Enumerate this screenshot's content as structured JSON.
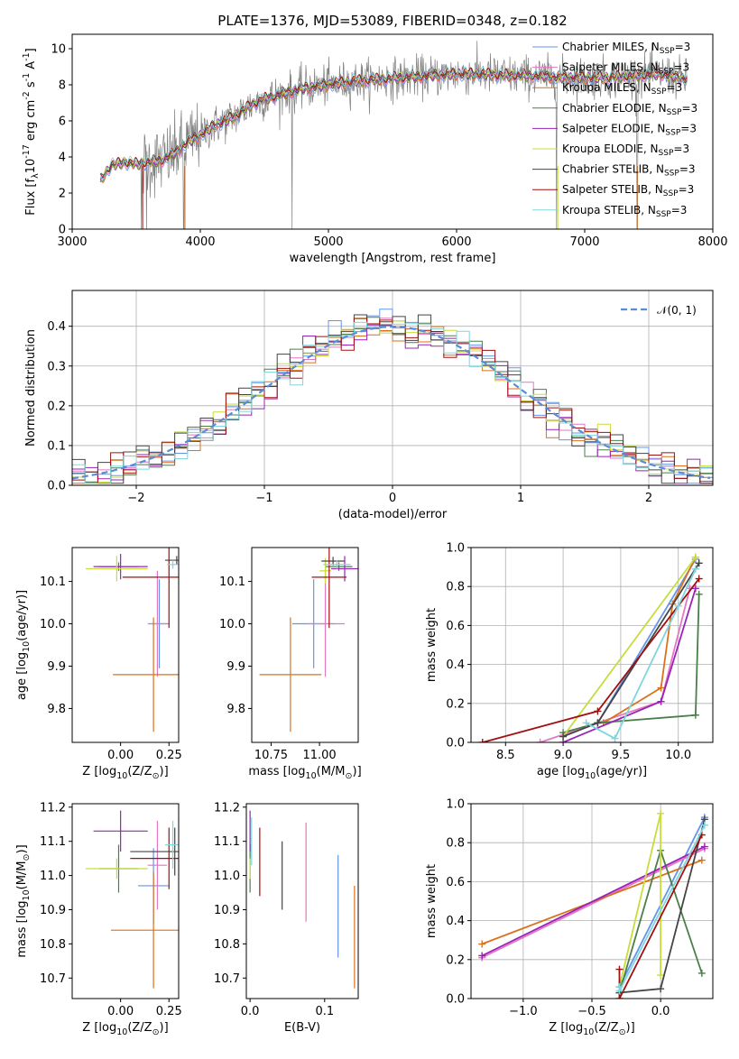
{
  "title": "PLATE=1376, MJD=53089, FIBERID=0348, z=0.182",
  "models": [
    {
      "name": "Chabrier MILES, N$_{SSP}$=3",
      "label_base": "Chabrier MILES, N",
      "label_sub": "SSP",
      "label_tail": "=3",
      "color": "#6495ed"
    },
    {
      "name": "Salpeter MILES, N$_{SSP}$=3",
      "label_base": "Salpeter MILES, N",
      "label_sub": "SSP",
      "label_tail": "=3",
      "color": "#e377c2"
    },
    {
      "name": "Kroupa MILES, N$_{SSP}$=3",
      "label_base": "Kroupa MILES, N",
      "label_sub": "SSP",
      "label_tail": "=3",
      "color": "#d9711c"
    },
    {
      "name": "Chabrier ELODIE, N$_{SSP}$=3",
      "label_base": "Chabrier ELODIE, N",
      "label_sub": "SSP",
      "label_tail": "=3",
      "color": "#4a7f4a"
    },
    {
      "name": "Salpeter ELODIE, N$_{SSP}$=3",
      "label_base": "Salpeter ELODIE, N",
      "label_sub": "SSP",
      "label_tail": "=3",
      "color": "#9b22b8"
    },
    {
      "name": "Kroupa ELODIE, N$_{SSP}$=3",
      "label_base": "Kroupa ELODIE, N",
      "label_sub": "SSP",
      "label_tail": "=3",
      "color": "#c8dc3c"
    },
    {
      "name": "Chabrier STELIB, N$_{SSP}$=3",
      "label_base": "Chabrier STELIB, N",
      "label_sub": "SSP",
      "label_tail": "=3",
      "color": "#444444"
    },
    {
      "name": "Salpeter STELIB, N$_{SSP}$=3",
      "label_base": "Salpeter STELIB, N",
      "label_sub": "SSP",
      "label_tail": "=3",
      "color": "#a01010"
    },
    {
      "name": "Kroupa STELIB, N$_{SSP}$=3",
      "label_base": "Kroupa STELIB, N",
      "label_sub": "SSP",
      "label_tail": "=3",
      "color": "#7fd6dc"
    }
  ],
  "chart_data": [
    {
      "id": "spectrum",
      "type": "line",
      "xlabel": "wavelength [Angstrom, rest frame]",
      "ylabel": "Flux [f$_\\lambda$10$^{-17}$ erg cm$^{-2}$ s$^{-1}$ A$^{-1}$]",
      "xlim": [
        3000,
        8000
      ],
      "ylim": [
        0,
        10.8
      ],
      "xticks": [
        3000,
        4000,
        5000,
        6000,
        7000,
        8000
      ],
      "yticks": [
        0,
        2,
        4,
        6,
        8,
        10
      ],
      "data_color": "#808080",
      "data_trend": {
        "x": [
          3220,
          3300,
          3400,
          3500,
          3600,
          3700,
          3800,
          3900,
          4000,
          4100,
          4200,
          4300,
          4400,
          4500,
          4600,
          4700,
          4800,
          4900,
          5000,
          5200,
          5400,
          5600,
          5800,
          6000,
          6200,
          6400,
          6600,
          6800,
          7000,
          7200,
          7400,
          7600,
          7800
        ],
        "y": [
          2.7,
          3.5,
          3.7,
          3.6,
          3.7,
          3.8,
          4.2,
          4.8,
          5.2,
          5.7,
          6.0,
          6.4,
          6.9,
          7.2,
          7.4,
          7.6,
          7.8,
          7.9,
          8.0,
          8.2,
          8.3,
          8.4,
          8.5,
          8.6,
          8.6,
          8.5,
          8.5,
          8.4,
          8.4,
          8.4,
          8.5,
          8.6,
          8.3
        ]
      },
      "data_noise_start": 3550,
      "deep_dips": [
        3540,
        3580,
        3870,
        4715,
        6780,
        7410
      ]
    },
    {
      "id": "residuals",
      "type": "histogram",
      "xlabel": "(data-model)/error",
      "ylabel": "Normed distribution",
      "xlim": [
        -2.5,
        2.5
      ],
      "ylim": [
        0,
        0.49
      ],
      "xticks": [
        -2,
        -1,
        0,
        1,
        2
      ],
      "yticks": [
        0,
        0.1,
        0.2,
        0.3,
        0.4
      ],
      "bin_width": 0.1,
      "reference_curve": {
        "name": "$\\mathcal{N}(0,1)$",
        "label": "𝒩(0, 1)",
        "mean": 0,
        "sigma": 1,
        "color": "#5b8bd6"
      }
    },
    {
      "id": "age-vs-Z",
      "type": "scatter",
      "xlabel": "Z [log$_{10}$(Z/Z$_\\odot$)]",
      "ylabel": "age  [log$_{10}$(age/yr)]",
      "xlim": [
        -0.25,
        0.3
      ],
      "ylim": [
        9.72,
        10.18
      ],
      "xticks": [
        0.0,
        0.25
      ],
      "yticks": [
        9.8,
        9.9,
        10.0,
        10.1
      ],
      "points": [
        {
          "x": 0.2,
          "xerr": 0.05,
          "y": 10.0,
          "yerr": 0.105
        },
        {
          "x": 0.19,
          "xerr": 0.05,
          "y": 10.0,
          "yerr": 0.125
        },
        {
          "x": 0.17,
          "xerr": 0.21,
          "y": 9.88,
          "yerr": 0.135
        },
        {
          "x": -0.01,
          "xerr": 0.1,
          "y": 10.135,
          "yerr": 0.01
        },
        {
          "x": 0.0,
          "xerr": 0.14,
          "y": 10.135,
          "yerr": 0.03
        },
        {
          "x": -0.02,
          "xerr": 0.16,
          "y": 10.13,
          "yerr": 0.03
        },
        {
          "x": 0.29,
          "xerr": 0.06,
          "y": 10.15,
          "yerr": 0.01
        },
        {
          "x": 0.25,
          "xerr": 0.24,
          "y": 10.11,
          "yerr": 0.12
        },
        {
          "x": 0.27,
          "xerr": 0.03,
          "y": 10.14,
          "yerr": 0.01
        }
      ]
    },
    {
      "id": "age-vs-mass",
      "type": "scatter",
      "xlabel": "mass [log$_{10}$(M/M$_\\odot$)]",
      "ylabel": "",
      "xlim": [
        10.65,
        11.2
      ],
      "ylim": [
        9.72,
        10.18
      ],
      "xticks": [
        10.75,
        11.0
      ],
      "yticks": [
        9.8,
        9.9,
        10.0,
        10.1
      ],
      "xtick_labels": [
        "10.75",
        "11.00"
      ],
      "points": [
        {
          "x": 10.97,
          "xerr": 0.11,
          "y": 10.0,
          "yerr": 0.105
        },
        {
          "x": 11.03,
          "xerr": 0.1,
          "y": 10.0,
          "yerr": 0.125
        },
        {
          "x": 10.85,
          "xerr": 0.16,
          "y": 9.88,
          "yerr": 0.135
        },
        {
          "x": 11.1,
          "xerr": 0.07,
          "y": 10.135,
          "yerr": 0.01
        },
        {
          "x": 11.13,
          "xerr": 0.07,
          "y": 10.13,
          "yerr": 0.03
        },
        {
          "x": 11.03,
          "xerr": 0.03,
          "y": 10.125,
          "yerr": 0.03
        },
        {
          "x": 11.07,
          "xerr": 0.06,
          "y": 10.148,
          "yerr": 0.01
        },
        {
          "x": 11.05,
          "xerr": 0.09,
          "y": 10.11,
          "yerr": 0.12
        },
        {
          "x": 11.09,
          "xerr": 0.07,
          "y": 10.14,
          "yerr": 0.01
        }
      ]
    },
    {
      "id": "weight-vs-age",
      "type": "line",
      "xlabel": "age  [log$_{10}$(age/yr)]",
      "ylabel": "mass weight",
      "xlim": [
        8.2,
        10.3
      ],
      "ylim": [
        0,
        1.0
      ],
      "xticks": [
        8.5,
        9.0,
        9.5,
        10.0
      ],
      "yticks": [
        0.0,
        0.2,
        0.4,
        0.6,
        0.8,
        1.0
      ],
      "series": [
        {
          "x": [
            9.3,
            10.15
          ],
          "y": [
            0.1,
            0.94
          ]
        },
        {
          "x": [
            8.8,
            9.85,
            10.1
          ],
          "y": [
            0.0,
            0.21,
            0.79
          ]
        },
        {
          "x": [
            9.35,
            9.85,
            9.95,
            10.15
          ],
          "y": [
            0.1,
            0.28,
            0.71,
            0.95
          ]
        },
        {
          "x": [
            9.0,
            9.3,
            10.15,
            10.18
          ],
          "y": [
            0.05,
            0.1,
            0.14,
            0.76
          ]
        },
        {
          "x": [
            9.0,
            9.85,
            10.15
          ],
          "y": [
            0.0,
            0.21,
            0.79
          ]
        },
        {
          "x": [
            9.0,
            10.15
          ],
          "y": [
            0.03,
            0.95
          ]
        },
        {
          "x": [
            9.0,
            9.3,
            10.18
          ],
          "y": [
            0.03,
            0.1,
            0.92
          ]
        },
        {
          "x": [
            8.3,
            9.3,
            10.18
          ],
          "y": [
            0.0,
            0.16,
            0.84
          ]
        },
        {
          "x": [
            9.2,
            9.45,
            10.0,
            10.15
          ],
          "y": [
            0.1,
            0.02,
            0.7,
            0.89
          ]
        }
      ]
    },
    {
      "id": "mass-vs-Z",
      "type": "scatter",
      "xlabel": "Z [log$_{10}$(Z/Z$_\\odot$)]",
      "ylabel": "mass [log$_{10}$(M/M$_\\odot$)]",
      "xlim": [
        -0.25,
        0.3
      ],
      "ylim": [
        10.64,
        11.21
      ],
      "xticks": [
        0.0,
        0.25
      ],
      "yticks": [
        10.7,
        10.8,
        10.9,
        11.0,
        11.1,
        11.2
      ],
      "points": [
        {
          "x": 0.17,
          "xerr": 0.08,
          "y": 10.97,
          "yerr": 0.11
        },
        {
          "x": 0.19,
          "xerr": 0.05,
          "y": 11.03,
          "yerr": 0.13
        },
        {
          "x": 0.17,
          "xerr": 0.22,
          "y": 10.84,
          "yerr": 0.17
        },
        {
          "x": -0.01,
          "xerr": 0.1,
          "y": 11.02,
          "yerr": 0.07
        },
        {
          "x": 0.0,
          "xerr": 0.14,
          "y": 11.13,
          "yerr": 0.06
        },
        {
          "x": -0.02,
          "xerr": 0.16,
          "y": 11.02,
          "yerr": 0.03
        },
        {
          "x": 0.28,
          "xerr": 0.23,
          "y": 11.07,
          "yerr": 0.07
        },
        {
          "x": 0.25,
          "xerr": 0.2,
          "y": 11.05,
          "yerr": 0.09
        },
        {
          "x": 0.27,
          "xerr": 0.04,
          "y": 11.09,
          "yerr": 0.07
        }
      ]
    },
    {
      "id": "mass-vs-EBV",
      "type": "scatter",
      "xlabel": "E(B-V)",
      "ylabel": "",
      "xlim": [
        -0.005,
        0.145
      ],
      "ylim": [
        10.64,
        11.21
      ],
      "xticks": [
        0.0,
        0.1
      ],
      "yticks": [
        10.7,
        10.8,
        10.9,
        11.0,
        11.1,
        11.2
      ],
      "points": [
        {
          "x": 0.118,
          "y": 10.91,
          "yerr": 0.15
        },
        {
          "x": 0.075,
          "y": 11.01,
          "yerr": 0.145
        },
        {
          "x": 0.14,
          "y": 10.82,
          "yerr": 0.15
        },
        {
          "x": 0.0,
          "y": 11.02,
          "yerr": 0.07
        },
        {
          "x": 0.0,
          "y": 11.13,
          "yerr": 0.06
        },
        {
          "x": 0.0,
          "y": 11.02,
          "yerr": 0.03
        },
        {
          "x": 0.043,
          "y": 11.0,
          "yerr": 0.1
        },
        {
          "x": 0.013,
          "y": 11.04,
          "yerr": 0.1
        },
        {
          "x": 0.002,
          "y": 11.1,
          "yerr": 0.07
        }
      ]
    },
    {
      "id": "weight-vs-Z",
      "type": "line",
      "xlabel": "Z [log$_{10}$(Z/Z$_\\odot$)]",
      "ylabel": "mass weight",
      "xlim": [
        -1.38,
        0.38
      ],
      "ylim": [
        0,
        1.0
      ],
      "xticks": [
        -1.0,
        -0.5,
        0.0
      ],
      "yticks": [
        0.0,
        0.2,
        0.4,
        0.6,
        0.8,
        1.0
      ],
      "series": [
        {
          "x": [
            -0.3,
            0.32
          ],
          "y": [
            0.06,
            0.93
          ]
        },
        {
          "x": [
            -1.3,
            0.32
          ],
          "y": [
            0.21,
            0.77
          ]
        },
        {
          "x": [
            -1.3,
            0.3
          ],
          "y": [
            0.28,
            0.71
          ]
        },
        {
          "x": [
            -0.3,
            0.0,
            0.3
          ],
          "y": [
            0.03,
            0.76,
            0.13
          ]
        },
        {
          "x": [
            -1.3,
            0.32
          ],
          "y": [
            0.22,
            0.78
          ]
        },
        {
          "x": [
            -0.3,
            0.0,
            0.0
          ],
          "y": [
            0.06,
            0.95,
            0.12
          ]
        },
        {
          "x": [
            -0.3,
            0.0,
            0.32
          ],
          "y": [
            0.03,
            0.05,
            0.92
          ]
        },
        {
          "x": [
            -0.3,
            -0.3,
            0.3
          ],
          "y": [
            0.15,
            0.0,
            0.84
          ]
        },
        {
          "x": [
            -0.3,
            -0.3,
            0.32
          ],
          "y": [
            0.06,
            0.04,
            0.89
          ]
        }
      ]
    }
  ]
}
